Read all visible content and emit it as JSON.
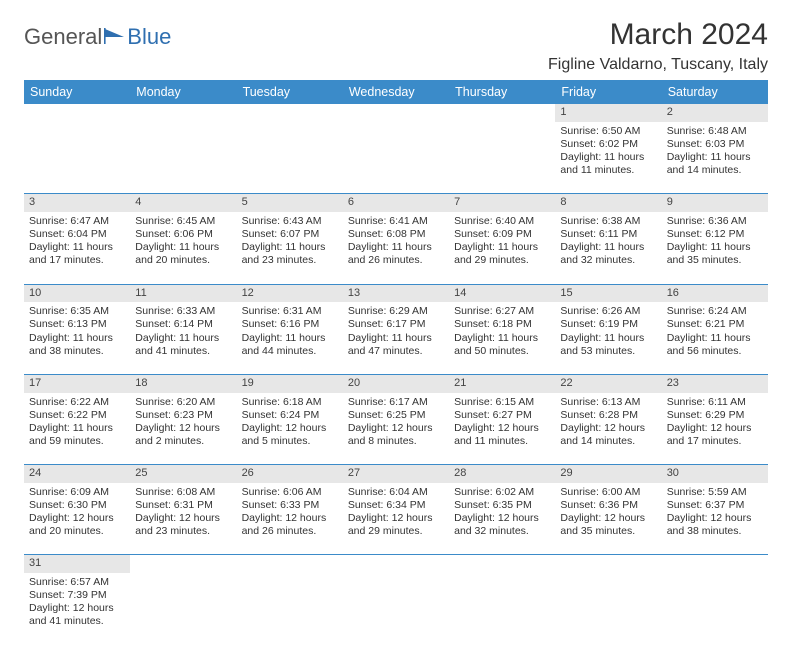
{
  "logo": {
    "text1": "General",
    "text2": "Blue",
    "color1": "#555555",
    "color2": "#2f6fb0"
  },
  "title": "March 2024",
  "subtitle": "Figline Valdarno, Tuscany, Italy",
  "colors": {
    "header_bg": "#3b8bc9",
    "header_fg": "#ffffff",
    "daynum_bg": "#e7e7e7",
    "rule": "#3b8bc9",
    "text": "#333333"
  },
  "weekdays": [
    "Sunday",
    "Monday",
    "Tuesday",
    "Wednesday",
    "Thursday",
    "Friday",
    "Saturday"
  ],
  "first_weekday_index": 5,
  "days": [
    {
      "n": 1,
      "sunrise": "6:50 AM",
      "sunset": "6:02 PM",
      "daylight": "11 hours and 11 minutes."
    },
    {
      "n": 2,
      "sunrise": "6:48 AM",
      "sunset": "6:03 PM",
      "daylight": "11 hours and 14 minutes."
    },
    {
      "n": 3,
      "sunrise": "6:47 AM",
      "sunset": "6:04 PM",
      "daylight": "11 hours and 17 minutes."
    },
    {
      "n": 4,
      "sunrise": "6:45 AM",
      "sunset": "6:06 PM",
      "daylight": "11 hours and 20 minutes."
    },
    {
      "n": 5,
      "sunrise": "6:43 AM",
      "sunset": "6:07 PM",
      "daylight": "11 hours and 23 minutes."
    },
    {
      "n": 6,
      "sunrise": "6:41 AM",
      "sunset": "6:08 PM",
      "daylight": "11 hours and 26 minutes."
    },
    {
      "n": 7,
      "sunrise": "6:40 AM",
      "sunset": "6:09 PM",
      "daylight": "11 hours and 29 minutes."
    },
    {
      "n": 8,
      "sunrise": "6:38 AM",
      "sunset": "6:11 PM",
      "daylight": "11 hours and 32 minutes."
    },
    {
      "n": 9,
      "sunrise": "6:36 AM",
      "sunset": "6:12 PM",
      "daylight": "11 hours and 35 minutes."
    },
    {
      "n": 10,
      "sunrise": "6:35 AM",
      "sunset": "6:13 PM",
      "daylight": "11 hours and 38 minutes."
    },
    {
      "n": 11,
      "sunrise": "6:33 AM",
      "sunset": "6:14 PM",
      "daylight": "11 hours and 41 minutes."
    },
    {
      "n": 12,
      "sunrise": "6:31 AM",
      "sunset": "6:16 PM",
      "daylight": "11 hours and 44 minutes."
    },
    {
      "n": 13,
      "sunrise": "6:29 AM",
      "sunset": "6:17 PM",
      "daylight": "11 hours and 47 minutes."
    },
    {
      "n": 14,
      "sunrise": "6:27 AM",
      "sunset": "6:18 PM",
      "daylight": "11 hours and 50 minutes."
    },
    {
      "n": 15,
      "sunrise": "6:26 AM",
      "sunset": "6:19 PM",
      "daylight": "11 hours and 53 minutes."
    },
    {
      "n": 16,
      "sunrise": "6:24 AM",
      "sunset": "6:21 PM",
      "daylight": "11 hours and 56 minutes."
    },
    {
      "n": 17,
      "sunrise": "6:22 AM",
      "sunset": "6:22 PM",
      "daylight": "11 hours and 59 minutes."
    },
    {
      "n": 18,
      "sunrise": "6:20 AM",
      "sunset": "6:23 PM",
      "daylight": "12 hours and 2 minutes."
    },
    {
      "n": 19,
      "sunrise": "6:18 AM",
      "sunset": "6:24 PM",
      "daylight": "12 hours and 5 minutes."
    },
    {
      "n": 20,
      "sunrise": "6:17 AM",
      "sunset": "6:25 PM",
      "daylight": "12 hours and 8 minutes."
    },
    {
      "n": 21,
      "sunrise": "6:15 AM",
      "sunset": "6:27 PM",
      "daylight": "12 hours and 11 minutes."
    },
    {
      "n": 22,
      "sunrise": "6:13 AM",
      "sunset": "6:28 PM",
      "daylight": "12 hours and 14 minutes."
    },
    {
      "n": 23,
      "sunrise": "6:11 AM",
      "sunset": "6:29 PM",
      "daylight": "12 hours and 17 minutes."
    },
    {
      "n": 24,
      "sunrise": "6:09 AM",
      "sunset": "6:30 PM",
      "daylight": "12 hours and 20 minutes."
    },
    {
      "n": 25,
      "sunrise": "6:08 AM",
      "sunset": "6:31 PM",
      "daylight": "12 hours and 23 minutes."
    },
    {
      "n": 26,
      "sunrise": "6:06 AM",
      "sunset": "6:33 PM",
      "daylight": "12 hours and 26 minutes."
    },
    {
      "n": 27,
      "sunrise": "6:04 AM",
      "sunset": "6:34 PM",
      "daylight": "12 hours and 29 minutes."
    },
    {
      "n": 28,
      "sunrise": "6:02 AM",
      "sunset": "6:35 PM",
      "daylight": "12 hours and 32 minutes."
    },
    {
      "n": 29,
      "sunrise": "6:00 AM",
      "sunset": "6:36 PM",
      "daylight": "12 hours and 35 minutes."
    },
    {
      "n": 30,
      "sunrise": "5:59 AM",
      "sunset": "6:37 PM",
      "daylight": "12 hours and 38 minutes."
    },
    {
      "n": 31,
      "sunrise": "6:57 AM",
      "sunset": "7:39 PM",
      "daylight": "12 hours and 41 minutes."
    }
  ],
  "labels": {
    "sunrise": "Sunrise:",
    "sunset": "Sunset:",
    "daylight": "Daylight:"
  }
}
